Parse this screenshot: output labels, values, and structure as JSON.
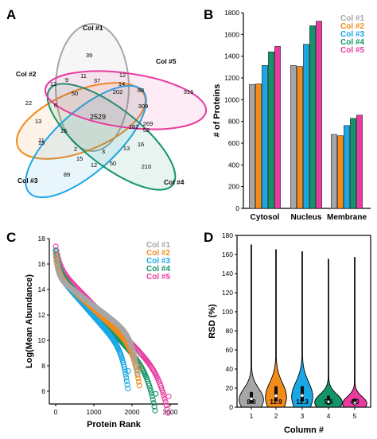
{
  "colors": {
    "col1": "#a6a6a6",
    "col2": "#f28b1a",
    "col3": "#1aa7e6",
    "col4": "#13946a",
    "col5": "#e83ba0"
  },
  "chart_data": [
    {
      "panel": "A",
      "type": "venn",
      "sets": [
        "Col #1",
        "Col #2",
        "Col #3",
        "Col #4",
        "Col #5"
      ],
      "regions": [
        "39",
        "12",
        "9",
        "11",
        "37",
        "12",
        "14",
        "88",
        "316",
        "22",
        "50",
        "202",
        "309",
        "6",
        "2529",
        "182",
        "269",
        "52",
        "13",
        "16",
        "11",
        "15",
        "2",
        "3",
        "13",
        "16",
        "12",
        "15",
        "50",
        "89",
        "210"
      ]
    },
    {
      "panel": "B",
      "type": "bar",
      "categories": [
        "Cytosol",
        "Nucleus",
        "Membrane"
      ],
      "series": [
        {
          "name": "Col #1",
          "values": [
            1140,
            1315,
            680
          ]
        },
        {
          "name": "Col #2",
          "values": [
            1145,
            1305,
            668
          ]
        },
        {
          "name": "Col #3",
          "values": [
            1315,
            1510,
            762
          ]
        },
        {
          "name": "Col #4",
          "values": [
            1440,
            1680,
            828
          ]
        },
        {
          "name": "Col #5",
          "values": [
            1490,
            1722,
            858
          ]
        }
      ],
      "ylabel": "# of Proteins",
      "ylim": [
        0,
        1800
      ],
      "yticks": [
        "0",
        "200",
        "400",
        "600",
        "800",
        "1000",
        "1200",
        "1400",
        "1600",
        "1800"
      ],
      "legend": "top-right"
    },
    {
      "panel": "C",
      "type": "scatter",
      "xlabel": "Protein Rank",
      "ylabel": "Log(Mean Abundance)",
      "xlim": [
        0,
        3000
      ],
      "ylim": [
        5,
        18
      ],
      "xticks": [
        "0",
        "1000",
        "2000",
        "3000"
      ],
      "yticks": [
        "6",
        "8",
        "10",
        "12",
        "14",
        "16",
        "18"
      ],
      "series": [
        {
          "name": "Col #1",
          "n": 2150,
          "start": 16.6,
          "end": 8.9
        },
        {
          "name": "Col #2",
          "n": 2200,
          "start": 16.8,
          "end": 7.9
        },
        {
          "name": "Col #3",
          "n": 1900,
          "start": 16.9,
          "end": 7.6
        },
        {
          "name": "Col #4",
          "n": 2620,
          "start": 17.1,
          "end": 5.8
        },
        {
          "name": "Col #5",
          "n": 2960,
          "start": 17.4,
          "end": 5.6
        }
      ],
      "legend": "top-right"
    },
    {
      "panel": "D",
      "type": "violin",
      "xlabel": "Column #",
      "ylabel": "RSD (%)",
      "ylim": [
        0,
        180
      ],
      "yticks": [
        "0",
        "20",
        "40",
        "60",
        "80",
        "100",
        "120",
        "140",
        "160",
        "180"
      ],
      "categories": [
        "1",
        "2",
        "3",
        "4",
        "5"
      ],
      "medians": [
        8.8,
        11.9,
        12.3,
        5.6,
        4.3
      ],
      "median_labels": [
        "8.8",
        "11.9",
        "12.3",
        "5.6",
        "4.3"
      ],
      "max": [
        170,
        165,
        163,
        155,
        157
      ],
      "q1": [
        4,
        6,
        6,
        2.5,
        2
      ],
      "q3": [
        16,
        22,
        22,
        12,
        9
      ]
    }
  ]
}
